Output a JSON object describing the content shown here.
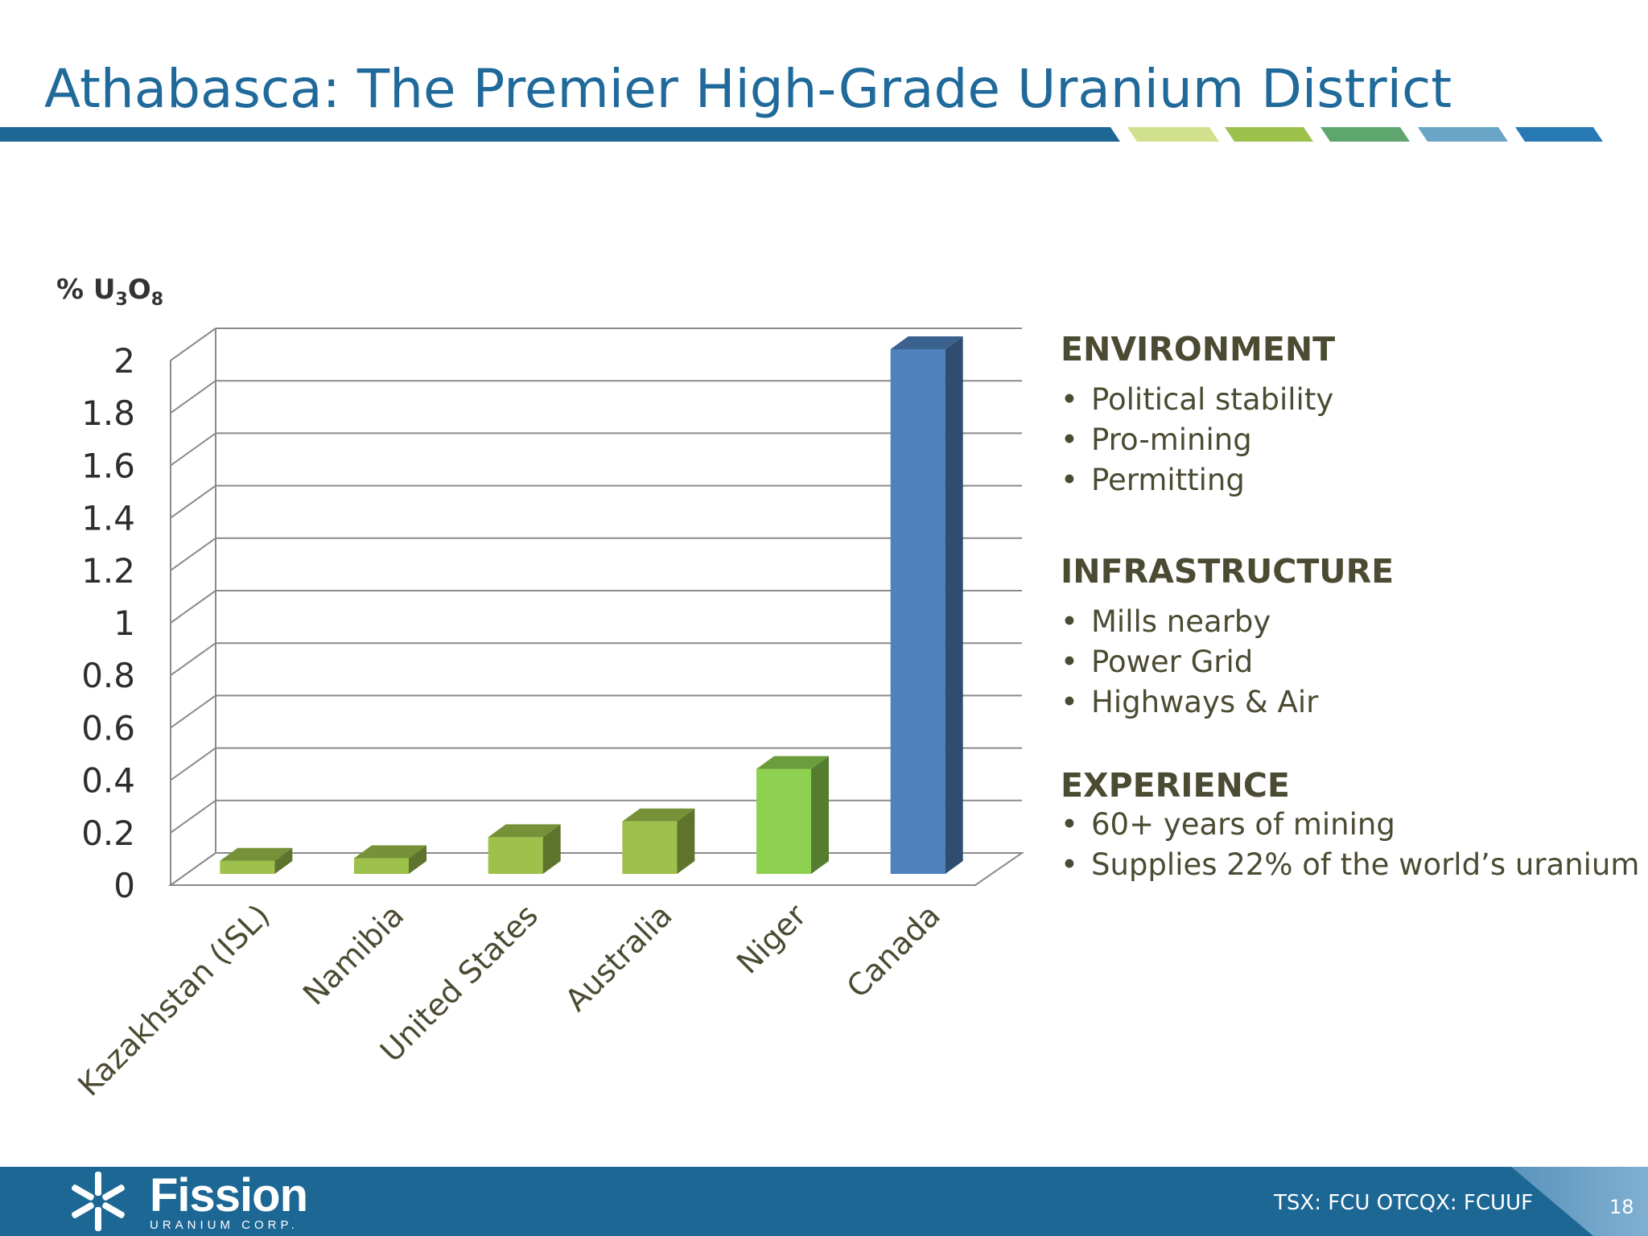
{
  "slide": {
    "title": "Athabasca: The Premier High-Grade Uranium District",
    "page_number": "18"
  },
  "chart_data": {
    "type": "bar",
    "style": "3d-column",
    "ylabel": "% U3O8",
    "ylim": [
      0,
      2
    ],
    "yticks": [
      "0",
      "0.2",
      "0.4",
      "0.6",
      "0.8",
      "1",
      "1.2",
      "1.4",
      "1.6",
      "1.8",
      "2"
    ],
    "grid": true,
    "categories": [
      "Kazakhstan (ISL)",
      "Namibia",
      "United States",
      "Australia",
      "Niger",
      "Canada"
    ],
    "values": [
      0.05,
      0.06,
      0.14,
      0.2,
      0.4,
      2.0
    ],
    "colors": [
      "#9dc14a",
      "#9dc14a",
      "#9dc14a",
      "#9dc14a",
      "#8ed150",
      "#4f81bd"
    ]
  },
  "sections": [
    {
      "heading": "ENVIRONMENT",
      "items": [
        "Political stability",
        "Pro-mining",
        "Permitting"
      ]
    },
    {
      "heading": "INFRASTRUCTURE",
      "items": [
        "Mills nearby",
        "Power Grid",
        "Highways & Air"
      ]
    },
    {
      "heading": "EXPERIENCE",
      "items": [
        "60+ years of mining",
        "Supplies 22% of the world’s uranium"
      ]
    }
  ],
  "footer": {
    "logo_name": "Fission",
    "logo_sub": "URANIUM CORP.",
    "ticker": "TSX: FCU   OTCQX: FCUUF"
  },
  "colors": {
    "title": "#1f6a9a",
    "footer": "#1d6794",
    "text": "#4b4a32",
    "green_bar": "#9dc14a",
    "blue_bar": "#4f81bd"
  },
  "icons": {
    "logo": "fission-logo-icon"
  }
}
